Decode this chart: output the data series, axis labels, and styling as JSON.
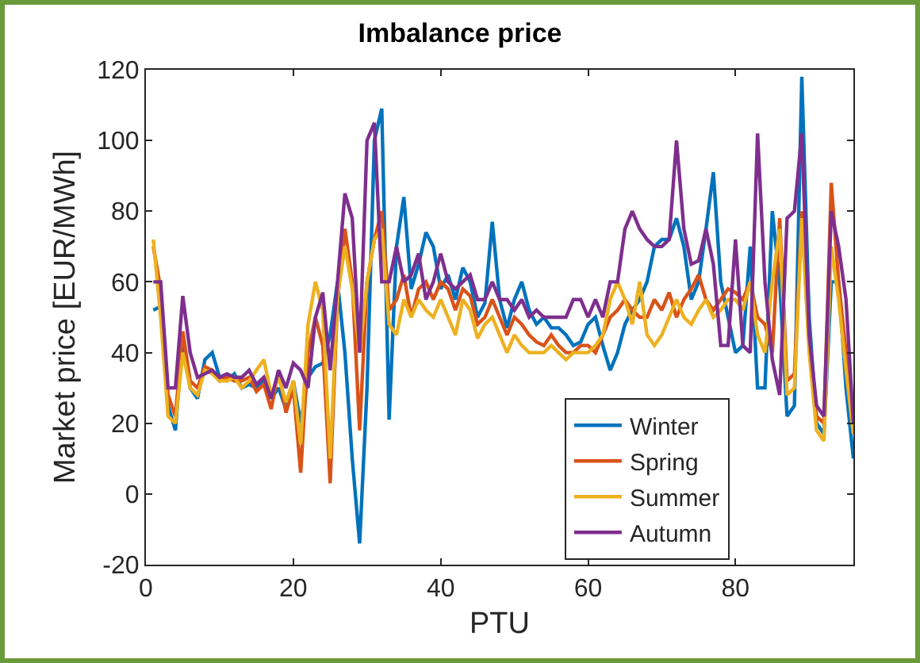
{
  "chart_data": {
    "type": "line",
    "title": "Imbalance price",
    "xlabel": "PTU",
    "ylabel": "Market price [EUR/MWh]",
    "x": [
      1,
      2,
      3,
      4,
      5,
      6,
      7,
      8,
      9,
      10,
      11,
      12,
      13,
      14,
      15,
      16,
      17,
      18,
      19,
      20,
      21,
      22,
      23,
      24,
      25,
      26,
      27,
      28,
      29,
      30,
      31,
      32,
      33,
      34,
      35,
      36,
      37,
      38,
      39,
      40,
      41,
      42,
      43,
      44,
      45,
      46,
      47,
      48,
      49,
      50,
      51,
      52,
      53,
      54,
      55,
      56,
      57,
      58,
      59,
      60,
      61,
      62,
      63,
      64,
      65,
      66,
      67,
      68,
      69,
      70,
      71,
      72,
      73,
      74,
      75,
      76,
      77,
      78,
      79,
      80,
      81,
      82,
      83,
      84,
      85,
      86,
      87,
      88,
      89,
      90,
      91,
      92,
      93,
      94,
      95,
      96
    ],
    "series": [
      {
        "name": "Winter",
        "color": "#0072bd",
        "values": [
          52,
          53,
          25,
          18,
          45,
          30,
          27,
          38,
          40,
          33,
          32,
          34,
          30,
          31,
          30,
          32,
          27,
          30,
          24,
          32,
          20,
          33,
          36,
          37,
          45,
          60,
          40,
          10,
          -14,
          30,
          100,
          109,
          21,
          70,
          84,
          58,
          65,
          74,
          70,
          58,
          62,
          55,
          64,
          60,
          50,
          54,
          77,
          55,
          47,
          55,
          60,
          52,
          48,
          50,
          47,
          47,
          45,
          42,
          43,
          48,
          50,
          42,
          35,
          40,
          48,
          52,
          55,
          60,
          70,
          72,
          72,
          78,
          70,
          55,
          60,
          75,
          91,
          60,
          50,
          40,
          42,
          70,
          30,
          30,
          80,
          60,
          22,
          25,
          118,
          50,
          20,
          17,
          60,
          60,
          30,
          10
        ]
      },
      {
        "name": "Spring",
        "color": "#d95319",
        "values": [
          70,
          58,
          28,
          22,
          46,
          32,
          30,
          36,
          35,
          32,
          33,
          32,
          32,
          33,
          29,
          31,
          24,
          35,
          23,
          30,
          6,
          40,
          50,
          42,
          3,
          55,
          75,
          60,
          18,
          60,
          72,
          80,
          52,
          55,
          62,
          50,
          58,
          60,
          55,
          60,
          58,
          52,
          58,
          56,
          48,
          50,
          55,
          50,
          45,
          50,
          48,
          45,
          43,
          42,
          45,
          42,
          40,
          40,
          42,
          42,
          40,
          45,
          50,
          52,
          55,
          52,
          50,
          50,
          55,
          52,
          57,
          50,
          55,
          58,
          62,
          55,
          52,
          55,
          58,
          57,
          55,
          60,
          50,
          48,
          40,
          78,
          32,
          34,
          80,
          42,
          22,
          20,
          88,
          60,
          40,
          20
        ]
      },
      {
        "name": "Summer",
        "color": "#edb120",
        "values": [
          72,
          50,
          22,
          20,
          40,
          30,
          28,
          35,
          34,
          32,
          32,
          33,
          30,
          32,
          35,
          38,
          28,
          33,
          26,
          32,
          14,
          48,
          60,
          52,
          10,
          56,
          70,
          58,
          40,
          60,
          72,
          75,
          48,
          45,
          55,
          50,
          55,
          52,
          50,
          55,
          50,
          45,
          55,
          52,
          44,
          48,
          50,
          45,
          40,
          45,
          42,
          40,
          40,
          40,
          42,
          40,
          38,
          40,
          40,
          40,
          42,
          45,
          55,
          60,
          55,
          48,
          60,
          45,
          42,
          45,
          50,
          55,
          50,
          48,
          52,
          55,
          50,
          52,
          55,
          55,
          52,
          60,
          45,
          40,
          60,
          75,
          28,
          30,
          78,
          40,
          18,
          15,
          70,
          55,
          35,
          17
        ]
      },
      {
        "name": "Autumn",
        "color": "#7e2f8e",
        "values": [
          60,
          60,
          30,
          30,
          56,
          40,
          33,
          34,
          35,
          33,
          34,
          33,
          33,
          35,
          31,
          33,
          27,
          35,
          30,
          37,
          35,
          30,
          50,
          57,
          35,
          60,
          85,
          78,
          40,
          100,
          105,
          60,
          60,
          70,
          60,
          62,
          68,
          55,
          60,
          68,
          60,
          58,
          60,
          62,
          55,
          55,
          60,
          55,
          55,
          52,
          55,
          50,
          52,
          50,
          50,
          50,
          50,
          55,
          55,
          50,
          55,
          50,
          60,
          60,
          75,
          80,
          75,
          72,
          70,
          70,
          72,
          100,
          75,
          65,
          66,
          75,
          65,
          42,
          42,
          72,
          42,
          40,
          102,
          60,
          38,
          28,
          78,
          80,
          102,
          45,
          25,
          22,
          80,
          70,
          55,
          20
        ]
      }
    ],
    "xlim": [
      0,
      96
    ],
    "xticks": [
      0,
      20,
      40,
      60,
      80
    ],
    "ylim": [
      -20,
      120
    ],
    "yticks": [
      -20,
      0,
      20,
      40,
      60,
      80,
      100,
      120
    ],
    "grid": false,
    "legend": "bottom right",
    "marker": "none",
    "line_style": "solid"
  }
}
